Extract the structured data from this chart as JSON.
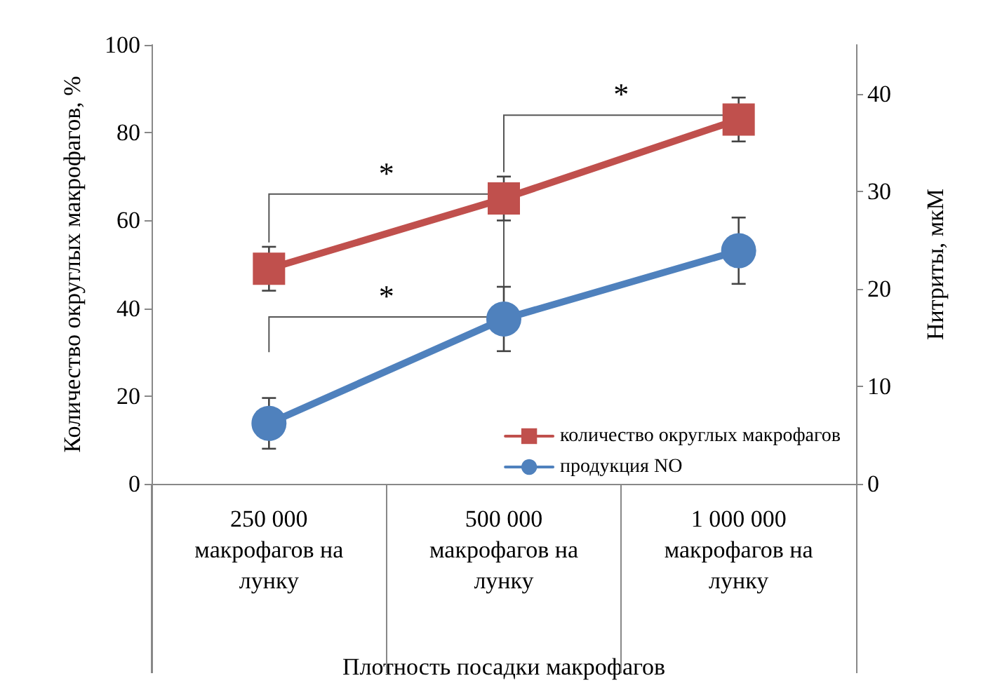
{
  "chart_data": {
    "type": "line",
    "categories": [
      "250 000\nмакрофагов на\nлунку",
      "500 000\nмакрофагов на\nлунку",
      "1 000 000\nмакрофагов на\nлунку"
    ],
    "xlabel": "Плотность посадки макрофагов",
    "ylabel": "Количество округлых макрофагов, %",
    "y2label": "Нитриты, мкМ",
    "ylim": [
      0,
      100
    ],
    "yticks": [
      0,
      20,
      40,
      60,
      80,
      100
    ],
    "y2lim": [
      0,
      45
    ],
    "y2ticks": [
      0,
      10,
      20,
      30,
      40
    ],
    "series": [
      {
        "name": "количество округлых макрофагов",
        "color": "#c0504d",
        "values": [
          49,
          65,
          83
        ],
        "errors": [
          5,
          5,
          5
        ],
        "marker": "square"
      },
      {
        "name": "продукция NO",
        "color": "#4f81bd",
        "values": [
          6.2,
          16.9,
          23.9
        ],
        "errors": [
          2.6,
          3.3,
          3.4
        ],
        "marker": "circle",
        "axis": "y2"
      }
    ],
    "annotations": [
      "*",
      "*",
      "*"
    ],
    "legend": "bottom right",
    "grid": false,
    "line_style": "solid"
  }
}
